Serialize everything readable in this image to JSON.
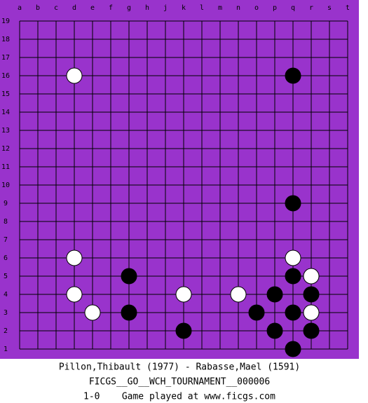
{
  "board": {
    "columns": [
      "a",
      "b",
      "c",
      "d",
      "e",
      "f",
      "g",
      "h",
      "j",
      "k",
      "l",
      "m",
      "n",
      "o",
      "p",
      "q",
      "r",
      "s",
      "t"
    ],
    "rows": [
      19,
      18,
      17,
      16,
      15,
      14,
      13,
      12,
      11,
      10,
      9,
      8,
      7,
      6,
      5,
      4,
      3,
      2,
      1
    ],
    "stones": [
      {
        "color": "white",
        "col": "d",
        "row": 16
      },
      {
        "color": "black",
        "col": "q",
        "row": 16
      },
      {
        "color": "black",
        "col": "q",
        "row": 9
      },
      {
        "color": "white",
        "col": "d",
        "row": 6
      },
      {
        "color": "white",
        "col": "q",
        "row": 6
      },
      {
        "color": "black",
        "col": "g",
        "row": 5
      },
      {
        "color": "black",
        "col": "q",
        "row": 5
      },
      {
        "color": "white",
        "col": "r",
        "row": 5
      },
      {
        "color": "white",
        "col": "d",
        "row": 4
      },
      {
        "color": "white",
        "col": "k",
        "row": 4
      },
      {
        "color": "white",
        "col": "n",
        "row": 4
      },
      {
        "color": "black",
        "col": "p",
        "row": 4
      },
      {
        "color": "black",
        "col": "r",
        "row": 4
      },
      {
        "color": "white",
        "col": "e",
        "row": 3
      },
      {
        "color": "black",
        "col": "g",
        "row": 3
      },
      {
        "color": "black",
        "col": "o",
        "row": 3
      },
      {
        "color": "black",
        "col": "q",
        "row": 3
      },
      {
        "color": "white",
        "col": "r",
        "row": 3
      },
      {
        "color": "black",
        "col": "k",
        "row": 2
      },
      {
        "color": "black",
        "col": "p",
        "row": 2
      },
      {
        "color": "black",
        "col": "r",
        "row": 2
      },
      {
        "color": "black",
        "col": "q",
        "row": 1
      }
    ]
  },
  "caption": {
    "players": "Pillon,Thibault (1977) - Rabasse,Mael (1591)",
    "event": "FICGS__GO__WCH_TOURNAMENT__000006",
    "result": "1-0    Game played at www.ficgs.com"
  }
}
